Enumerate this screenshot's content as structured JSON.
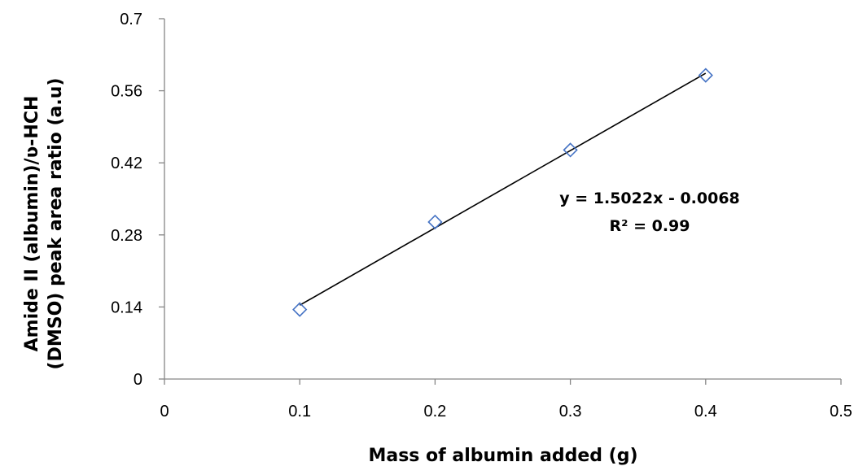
{
  "chart_data": {
    "type": "scatter",
    "title": "",
    "xlabel": "Mass of albumin added (g)",
    "ylabel_line1": "Amide II (albumin)/ʋ-HCH",
    "ylabel_line2": "(DMSO) peak area ratio (a.u)",
    "xlim": [
      0,
      0.5
    ],
    "ylim": [
      0,
      0.7
    ],
    "x_ticks": [
      "0",
      "0.1",
      "0.2",
      "0.3",
      "0.4",
      "0.5"
    ],
    "y_ticks": [
      "0",
      "0.14",
      "0.28",
      "0.42",
      "0.56",
      "0.7"
    ],
    "grid": false,
    "marker": "diamond-open",
    "colors": {
      "marker": "#4472C4",
      "trendline": "#000000",
      "axis": "#868686"
    },
    "series": [
      {
        "x": [
          0.1,
          0.2,
          0.3,
          0.4
        ],
        "y": [
          0.135,
          0.305,
          0.445,
          0.59
        ]
      }
    ],
    "trendline": {
      "slope": 1.5022,
      "intercept": -0.0068,
      "equation": "y = 1.5022x - 0.0068",
      "r_squared_label": "R² = 0.99"
    }
  }
}
